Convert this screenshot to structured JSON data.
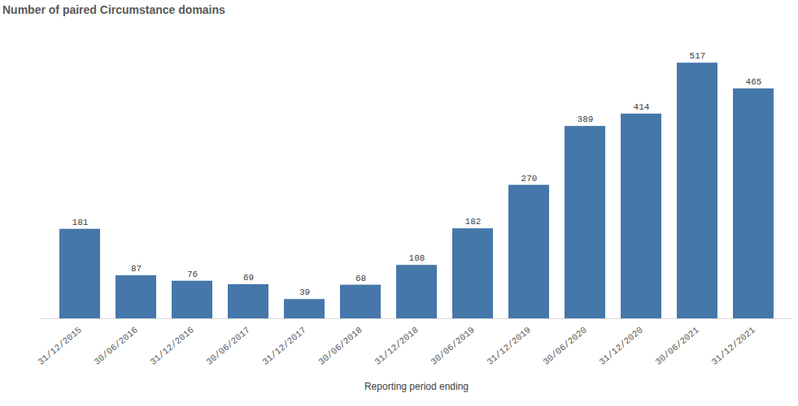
{
  "chart_data": {
    "type": "bar",
    "title": "Number of paired Circumstance domains",
    "x_label": "Reporting period ending",
    "categories": [
      "31/12/2015",
      "30/06/2016",
      "31/12/2016",
      "30/06/2017",
      "31/12/2017",
      "30/06/2018",
      "31/12/2018",
      "30/06/2019",
      "31/12/2019",
      "30/06/2020",
      "31/12/2020",
      "30/06/2021",
      "31/12/2021"
    ],
    "values": [
      181,
      87,
      76,
      69,
      39,
      68,
      108,
      182,
      270,
      389,
      414,
      517,
      465
    ],
    "color": "#4577aa",
    "ylim": [
      0,
      560
    ],
    "data_labels": true,
    "tick_labels": "x",
    "grid": false
  }
}
